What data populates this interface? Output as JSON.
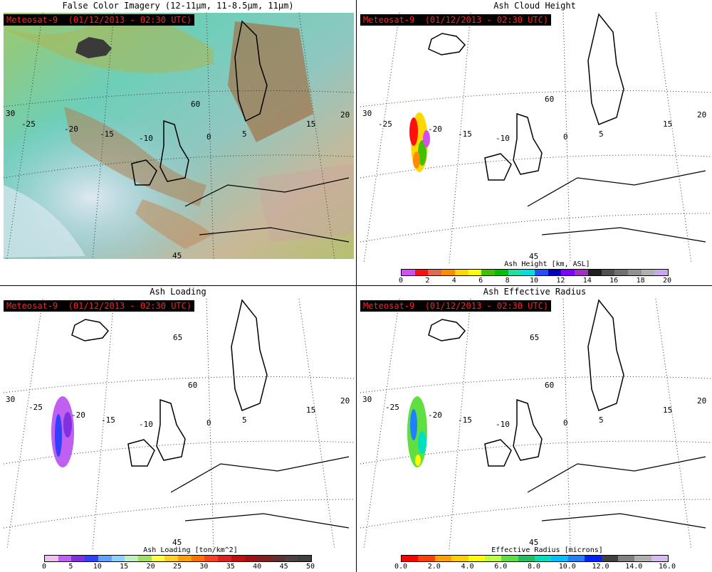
{
  "panels": [
    {
      "title": "False Color Imagery (12-11µm, 11-8.5µm, 11µm)",
      "badge": "Meteosat-9  (01/12/2013 - 02:30 UTC)"
    },
    {
      "title": "Ash Cloud Height",
      "badge": "Meteosat-9  (01/12/2013 - 02:30 UTC)"
    },
    {
      "title": "Ash Loading",
      "badge": "Meteosat-9  (01/12/2013 - 02:30 UTC)"
    },
    {
      "title": "Ash Effective Radius",
      "badge": "Meteosat-9  (01/12/2013 - 02:30 UTC)"
    }
  ],
  "grid_labels": {
    "lat_left": "30",
    "lat_right": "20",
    "lat_60": "60",
    "lat_65": "65",
    "lat_45": "45",
    "lon_m25": "-25",
    "lon_m20": "-20",
    "lon_m15": "-15",
    "lon_m10": "-10",
    "lon_0": "0",
    "lon_5": "5",
    "lon_15": "15",
    "lon_20": "20"
  },
  "colorbars": {
    "height": {
      "label": "Ash Height [km, ASL]",
      "ticks": [
        "0",
        "2",
        "4",
        "6",
        "8",
        "10",
        "12",
        "14",
        "16",
        "18",
        "20"
      ],
      "colors": [
        "#d050f0",
        "#ff1010",
        "#e06a50",
        "#ff8c00",
        "#ffd700",
        "#ffff00",
        "#40c000",
        "#00c000",
        "#20e0a0",
        "#00e0e0",
        "#2050ff",
        "#0000c0",
        "#8000ff",
        "#a030c0",
        "#202020",
        "#505050",
        "#707070",
        "#909090",
        "#b0b0b0",
        "#c8a8e8"
      ]
    },
    "loading": {
      "label": "Ash Loading [ton/km^2]",
      "ticks": [
        "0",
        "5",
        "10",
        "15",
        "20",
        "25",
        "30",
        "35",
        "40",
        "45",
        "50"
      ],
      "colors": [
        "#f0c0f0",
        "#c060f0",
        "#8030e0",
        "#3040ff",
        "#60a0ff",
        "#90d0ff",
        "#c0f0c0",
        "#a0e060",
        "#ffff40",
        "#ffd020",
        "#ffa000",
        "#ff7000",
        "#ff4020",
        "#e02020",
        "#c01010",
        "#a01010",
        "#802020",
        "#603030",
        "#504040",
        "#404040"
      ]
    },
    "radius": {
      "label": "Effective Radius [microns]",
      "ticks": [
        "0.0",
        "2.0",
        "4.0",
        "6.0",
        "8.0",
        "10.0",
        "12.0",
        "14.0",
        "16.0"
      ],
      "colors": [
        "#ff0000",
        "#ff4000",
        "#ffa000",
        "#ffd000",
        "#ffff00",
        "#c0ff40",
        "#60e040",
        "#20c060",
        "#00e0c0",
        "#00c0ff",
        "#2080ff",
        "#0020ff",
        "#404040",
        "#808080",
        "#b0b0b0",
        "#d8b8f0"
      ]
    }
  }
}
